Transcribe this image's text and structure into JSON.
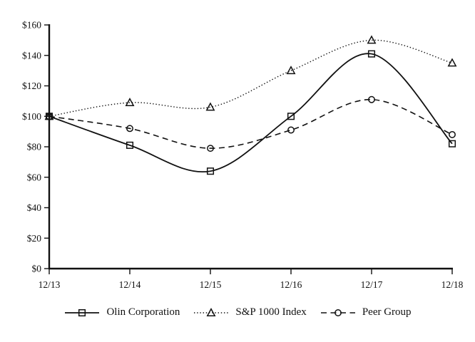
{
  "figure": {
    "background": "#ffffff",
    "ink_color": "#111111"
  },
  "chart_data": {
    "type": "line",
    "title": "",
    "xlabel": "",
    "ylabel": "",
    "categories": [
      "12/13",
      "12/14",
      "12/15",
      "12/16",
      "12/17",
      "12/18"
    ],
    "series": [
      {
        "name": "Olin Corporation",
        "marker": "square",
        "line_style": "solid",
        "color": "#111111",
        "values": [
          100,
          81,
          64,
          100,
          141,
          82
        ]
      },
      {
        "name": "S&P 1000 Index",
        "marker": "triangle",
        "line_style": "dotted",
        "color": "#111111",
        "values": [
          100,
          109,
          106,
          130,
          150,
          135
        ]
      },
      {
        "name": "Peer Group",
        "marker": "circle",
        "line_style": "dashed",
        "color": "#111111",
        "values": [
          100,
          92,
          79,
          91,
          111,
          88
        ]
      }
    ],
    "ylim": [
      0,
      160
    ],
    "y_tick_step": 20,
    "y_tick_labels": [
      "$0",
      "$20",
      "$40",
      "$60",
      "$80",
      "$100",
      "$120",
      "$140",
      "$160"
    ],
    "x_tick_labels": [
      "12/13",
      "12/14",
      "12/15",
      "12/16",
      "12/17",
      "12/18"
    ],
    "grid": false,
    "smooth": true,
    "legend_position": "bottom"
  }
}
